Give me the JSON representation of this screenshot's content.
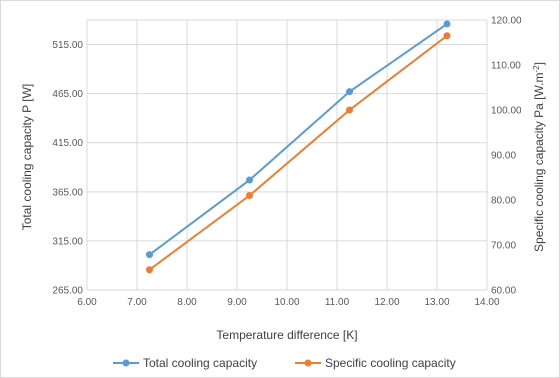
{
  "chart_data": {
    "type": "line",
    "x": [
      7.25,
      9.25,
      11.25,
      13.2
    ],
    "xlabel": "Temperature difference [K]",
    "xlim": [
      6.0,
      14.0
    ],
    "xticks": [
      "6.00",
      "7.00",
      "8.00",
      "9.00",
      "10.00",
      "11.00",
      "12.00",
      "13.00",
      "14.00"
    ],
    "ylabel_left": "Total cooling capacity P [W]",
    "ylim_left": [
      265.0,
      540.0
    ],
    "yticks_left": [
      "265.00",
      "315.00",
      "365.00",
      "415.00",
      "465.00",
      "515.00"
    ],
    "ylabel_right_prefix": "Specific cooling capacity Pa [W.m",
    "ylabel_right_sup": "-2",
    "ylabel_right_suffix": "]",
    "ylim_right": [
      60.0,
      120.0
    ],
    "yticks_right": [
      "60.00",
      "70.00",
      "80.00",
      "90.00",
      "100.00",
      "110.00",
      "120.00"
    ],
    "grid": true,
    "legend_position": "bottom",
    "series": [
      {
        "name": "Total cooling capacity",
        "axis": "left",
        "color": "#5b9bd5",
        "values": [
          301,
          377,
          467,
          536
        ]
      },
      {
        "name": "Specific cooling capacity",
        "axis": "right",
        "color": "#ed7d31",
        "values": [
          64.5,
          81.0,
          100.0,
          116.5
        ]
      }
    ]
  }
}
